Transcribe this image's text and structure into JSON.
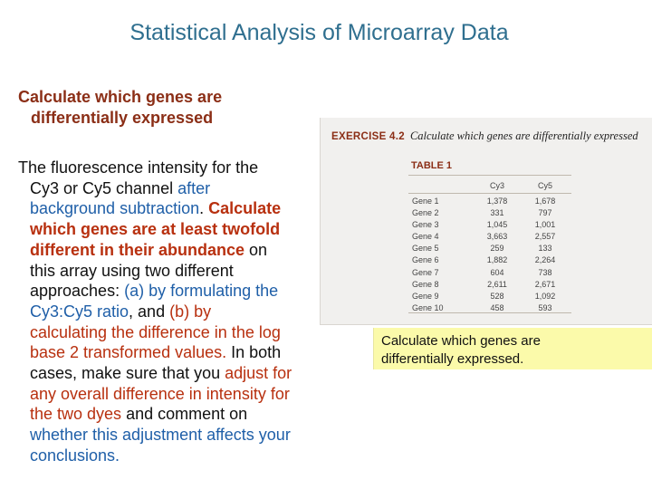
{
  "title": "Statistical Analysis of Microarray Data",
  "subhead": {
    "line1": "Calculate which genes are",
    "line2": "differentially expressed"
  },
  "body": {
    "l1": "The fluorescence intensity for the",
    "l2a": "Cy3 or Cy5 channel ",
    "l2b": "after",
    "l3a": "background subtraction",
    "l3b": ". ",
    "l3c": "Calculate",
    "l4": "which genes are at least twofold",
    "l5a": "different in their abundance",
    "l5b": " on",
    "l6": "this array using two different",
    "l7a": "approaches: ",
    "l7b": "(a) by formulating the",
    "l8a": "Cy3:Cy5 ratio",
    "l8b": ", and ",
    "l8c": "(b) by",
    "l9": "calculating the difference in the log",
    "l10a": "base 2 transformed values.",
    "l10b": " In both",
    "l11a": "cases, make sure that you ",
    "l11b": "adjust for",
    "l12": "any overall difference in intensity for",
    "l13a": "the two dyes",
    "l13b": " and comment on",
    "l14": "whether this adjustment affects your",
    "l15": "conclusions."
  },
  "exercise": {
    "label": "EXERCISE 4.2",
    "text": "Calculate which genes are differentially expressed",
    "table_title": "TABLE 1",
    "columns": [
      "",
      "Cy3",
      "Cy5"
    ],
    "rows": [
      [
        "Gene 1",
        "1,378",
        "1,678"
      ],
      [
        "Gene 2",
        "331",
        "797"
      ],
      [
        "Gene 3",
        "1,045",
        "1,001"
      ],
      [
        "Gene 4",
        "3,663",
        "2,557"
      ],
      [
        "Gene 5",
        "259",
        "133"
      ],
      [
        "Gene 6",
        "1,882",
        "2,264"
      ],
      [
        "Gene 7",
        "604",
        "738"
      ],
      [
        "Gene 8",
        "2,611",
        "2,671"
      ],
      [
        "Gene 9",
        "528",
        "1,092"
      ],
      [
        "Gene 10",
        "458",
        "593"
      ]
    ]
  },
  "note": {
    "line1": "Calculate which genes are",
    "line2": "differentially expressed."
  }
}
